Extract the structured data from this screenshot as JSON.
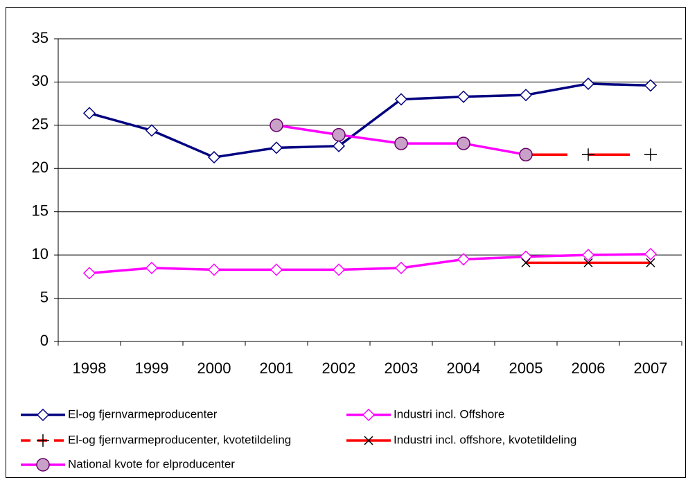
{
  "chart_data": {
    "type": "line",
    "categories": [
      "1998",
      "1999",
      "2000",
      "2001",
      "2002",
      "2003",
      "2004",
      "2005",
      "2006",
      "2007"
    ],
    "ylim": [
      0,
      35
    ],
    "yticks": [
      0,
      5,
      10,
      15,
      20,
      25,
      30,
      35
    ],
    "grid": true,
    "series": [
      {
        "name": "El-og fjernvarmeproducenter",
        "color": "#000080",
        "marker": "diamond",
        "marker_fill": "#ffffff",
        "values": [
          26.4,
          24.4,
          21.3,
          22.4,
          22.6,
          28.0,
          28.3,
          28.5,
          29.8,
          29.6
        ]
      },
      {
        "name": "Industri incl. Offshore",
        "color": "#ff00ff",
        "marker": "diamond",
        "marker_fill": "#ffffff",
        "values": [
          7.9,
          8.5,
          8.3,
          8.3,
          8.3,
          8.5,
          9.5,
          9.8,
          10.0,
          10.1
        ]
      },
      {
        "name": "El-og fjernvarmeproducenter, kvotetildeling",
        "color": "#ff0000",
        "marker": "plus",
        "dashed": true,
        "values": [
          null,
          null,
          null,
          null,
          null,
          null,
          null,
          21.6,
          21.6,
          21.6
        ]
      },
      {
        "name": "Industri incl. offshore, kvotetildeling",
        "color": "#ff0000",
        "marker": "cross",
        "values": [
          null,
          null,
          null,
          null,
          null,
          null,
          null,
          9.1,
          9.1,
          9.1
        ]
      },
      {
        "name": "National kvote for elproducenter",
        "color": "#ff00ff",
        "marker": "circle",
        "marker_fill": "#c8a0c8",
        "marker_stroke": "#660066",
        "values": [
          null,
          null,
          null,
          25.0,
          23.9,
          22.9,
          22.9,
          21.6,
          null,
          null
        ]
      }
    ]
  }
}
